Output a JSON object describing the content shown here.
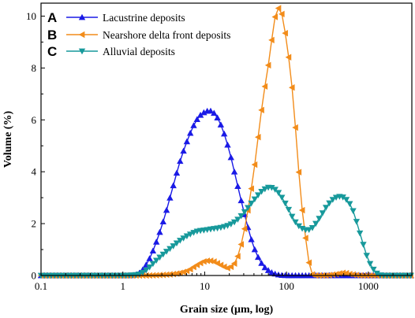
{
  "chart_data": {
    "type": "line",
    "title": "",
    "xlabel": "Grain size (μm, log)",
    "ylabel": "Volume (%)",
    "xscale": "log",
    "xlim": [
      0.1,
      3400
    ],
    "ylim": [
      0,
      10.5
    ],
    "xticks": [
      0.1,
      1,
      10,
      100,
      1000
    ],
    "xtick_labels": [
      "0.1",
      "1",
      "10",
      "100",
      "1000"
    ],
    "yticks": [
      0,
      2,
      4,
      6,
      8,
      10
    ],
    "ytick_labels": [
      "0",
      "2",
      "4",
      "6",
      "8",
      "10"
    ],
    "grid": false,
    "legend_position": "top-left",
    "panel_letters": [
      "A",
      "B",
      "C"
    ],
    "series": [
      {
        "name": "Lacustrine deposits",
        "color": "#1a1ae6",
        "marker": "triangle-up",
        "x": [
          0.1,
          0.3,
          0.7,
          1.0,
          1.3,
          1.6,
          2.0,
          2.5,
          3.2,
          4.0,
          5.0,
          6.3,
          8.0,
          10.0,
          12.6,
          15.8,
          20.0,
          25.1,
          31.6,
          39.8,
          50.1,
          63.1,
          79.4,
          100,
          1000,
          3300
        ],
        "y": [
          0,
          0,
          0,
          0,
          0,
          0.1,
          0.5,
          1.2,
          2.2,
          3.3,
          4.4,
          5.3,
          6.0,
          6.3,
          6.3,
          5.8,
          4.8,
          3.5,
          2.2,
          1.1,
          0.45,
          0.15,
          0.03,
          0,
          0,
          0
        ]
      },
      {
        "name": "Nearshore delta front deposits",
        "color": "#f28c1a",
        "marker": "triangle-left",
        "x": [
          0.1,
          1.0,
          2.0,
          3.0,
          4.0,
          5.0,
          6.3,
          8.0,
          10.0,
          12.6,
          15.8,
          20.0,
          25.1,
          31.6,
          39.8,
          50.1,
          63.1,
          70.8,
          79.4,
          89.1,
          100,
          112,
          126,
          150,
          180,
          200,
          250,
          300,
          400,
          500,
          600,
          800,
          1000,
          3300
        ],
        "y": [
          0,
          0,
          0,
          0.02,
          0.05,
          0.1,
          0.2,
          0.4,
          0.55,
          0.55,
          0.4,
          0.3,
          0.7,
          2.0,
          4.0,
          6.5,
          8.5,
          9.8,
          10.3,
          10.0,
          9.0,
          7.8,
          6.0,
          3.0,
          1.0,
          0.1,
          0,
          0,
          0.05,
          0.1,
          0.05,
          0,
          0,
          0
        ]
      },
      {
        "name": "Alluvial deposits",
        "color": "#17999b",
        "marker": "triangle-down",
        "x": [
          0.1,
          1.0,
          1.6,
          2.0,
          2.5,
          3.2,
          4.0,
          5.0,
          6.3,
          8.0,
          10.0,
          12.6,
          15.8,
          20.0,
          25.1,
          31.6,
          39.8,
          50.1,
          63.1,
          79.4,
          100,
          126,
          158,
          200,
          251,
          316,
          398,
          501,
          631,
          794,
          1000,
          1259,
          1500,
          3300
        ],
        "y": [
          0,
          0,
          0.05,
          0.25,
          0.55,
          0.85,
          1.1,
          1.35,
          1.55,
          1.7,
          1.75,
          1.8,
          1.85,
          1.95,
          2.15,
          2.5,
          2.9,
          3.25,
          3.4,
          3.2,
          2.7,
          2.1,
          1.8,
          1.8,
          2.2,
          2.7,
          3.0,
          3.0,
          2.6,
          1.6,
          0.6,
          0.1,
          0,
          0
        ]
      }
    ]
  }
}
